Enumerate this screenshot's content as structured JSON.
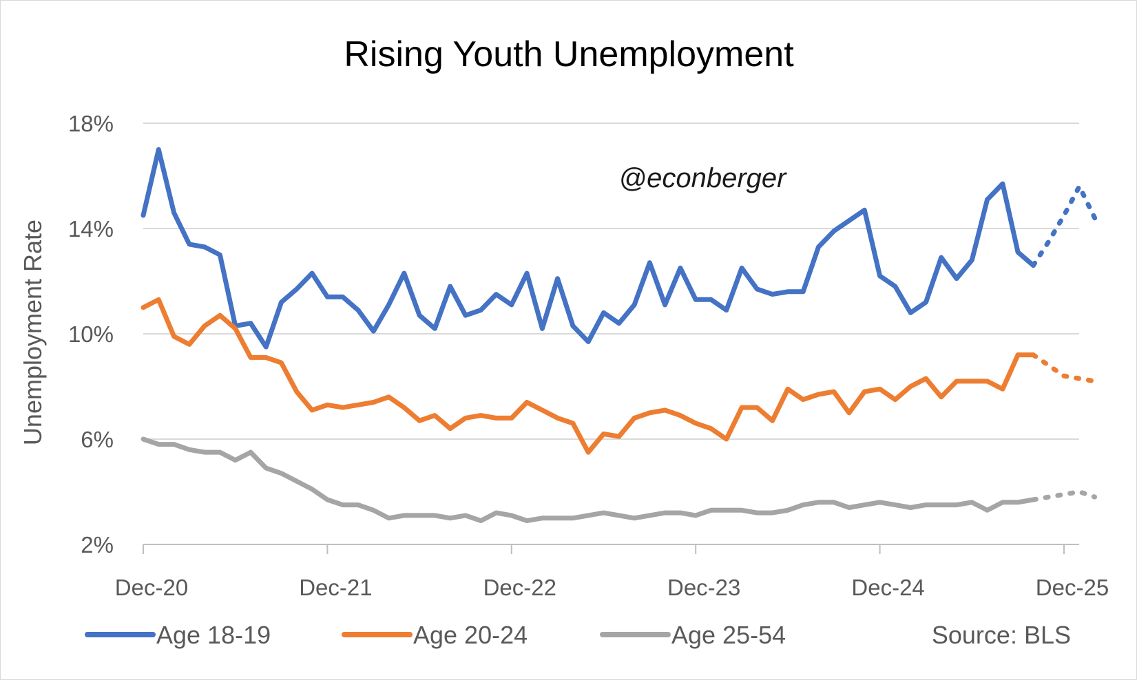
{
  "chart_data": {
    "type": "line",
    "title": "Rising Youth Unemployment",
    "ylabel": "Unemployment Rate",
    "xlabel": "",
    "ylim": [
      2,
      18
    ],
    "yticks": [
      "2%",
      "6%",
      "10%",
      "14%",
      "18%"
    ],
    "ytick_values": [
      2,
      6,
      10,
      14,
      18
    ],
    "xlim": [
      0,
      60
    ],
    "xticks": [
      "Dec-20",
      "Dec-21",
      "Dec-22",
      "Dec-23",
      "Dec-24",
      "Dec-25"
    ],
    "xtick_values": [
      0,
      12,
      24,
      36,
      48,
      60
    ],
    "grid": "horizontal",
    "legend_placement": "bottom",
    "watermark": "@econberger",
    "source": "Source: BLS",
    "series": [
      {
        "name": "Age 18-19",
        "color": "#4472c4",
        "values": [
          14.5,
          17.0,
          14.6,
          13.4,
          13.3,
          13.0,
          10.3,
          10.4,
          9.5,
          11.2,
          11.7,
          12.3,
          11.4,
          11.4,
          10.9,
          10.1,
          11.1,
          12.3,
          10.7,
          10.2,
          11.8,
          10.7,
          10.9,
          11.5,
          11.1,
          12.3,
          10.2,
          12.1,
          10.3,
          9.7,
          10.8,
          10.4,
          11.1,
          12.7,
          11.1,
          12.5,
          11.3,
          11.3,
          10.9,
          12.5,
          11.7,
          11.5,
          11.6,
          11.6,
          13.3,
          13.9,
          14.3,
          14.7,
          12.2,
          11.8,
          10.8,
          11.2,
          12.9,
          12.1,
          12.8,
          15.1,
          15.7,
          13.1,
          12.6
        ],
        "projected": [
          12.6,
          13.5,
          14.5,
          15.6,
          14.4
        ]
      },
      {
        "name": "Age 20-24",
        "color": "#ed7d31",
        "values": [
          11.0,
          11.3,
          9.9,
          9.6,
          10.3,
          10.7,
          10.2,
          9.1,
          9.1,
          8.9,
          7.8,
          7.1,
          7.3,
          7.2,
          7.3,
          7.4,
          7.6,
          7.2,
          6.7,
          6.9,
          6.4,
          6.8,
          6.9,
          6.8,
          6.8,
          7.4,
          7.1,
          6.8,
          6.6,
          5.5,
          6.2,
          6.1,
          6.8,
          7.0,
          7.1,
          6.9,
          6.6,
          6.4,
          6.0,
          7.2,
          7.2,
          6.7,
          7.9,
          7.5,
          7.7,
          7.8,
          7.0,
          7.8,
          7.9,
          7.5,
          8.0,
          8.3,
          7.6,
          8.2,
          8.2,
          8.2,
          7.9,
          9.2,
          9.2
        ],
        "projected": [
          9.2,
          8.8,
          8.4,
          8.3,
          8.2
        ]
      },
      {
        "name": "Age 25-54",
        "color": "#a5a5a5",
        "values": [
          6.0,
          5.8,
          5.8,
          5.6,
          5.5,
          5.5,
          5.2,
          5.5,
          4.9,
          4.7,
          4.4,
          4.1,
          3.7,
          3.5,
          3.5,
          3.3,
          3.0,
          3.1,
          3.1,
          3.1,
          3.0,
          3.1,
          2.9,
          3.2,
          3.1,
          2.9,
          3.0,
          3.0,
          3.0,
          3.1,
          3.2,
          3.1,
          3.0,
          3.1,
          3.2,
          3.2,
          3.1,
          3.3,
          3.3,
          3.3,
          3.2,
          3.2,
          3.3,
          3.5,
          3.6,
          3.6,
          3.4,
          3.5,
          3.6,
          3.5,
          3.4,
          3.5,
          3.5,
          3.5,
          3.6,
          3.3,
          3.6,
          3.6,
          3.7
        ],
        "projected": [
          3.7,
          3.8,
          3.9,
          4.0,
          3.8
        ]
      }
    ]
  }
}
